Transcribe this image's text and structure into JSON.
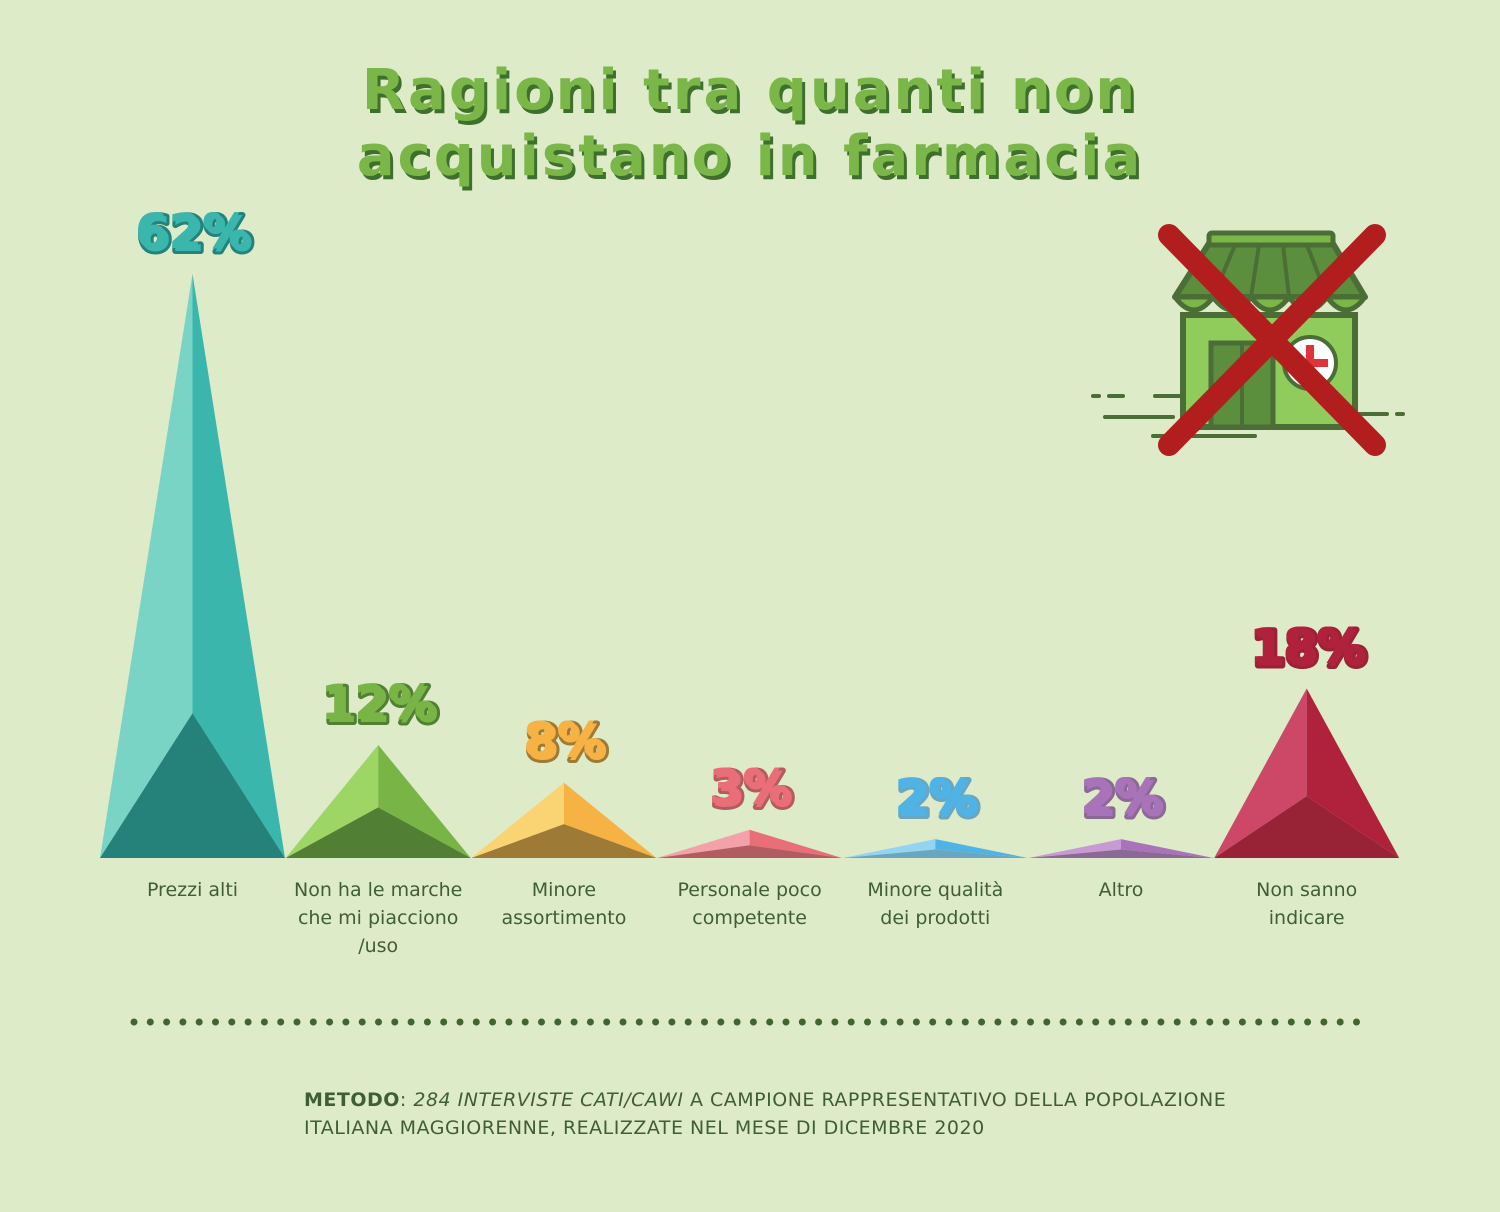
{
  "title": {
    "line1": "Ragioni tra quanti non",
    "line2": "acquistano in farmacia"
  },
  "chart_data": {
    "type": "bar",
    "style": "pyramid",
    "categories": [
      "Prezzi alti",
      "Non ha le marche che mi piacciono /uso",
      "Minore assortimento",
      "Personale poco competente",
      "Minore qualità dei prodotti",
      "Altro",
      "Non sanno indicare"
    ],
    "category_lines": [
      [
        "Prezzi alti"
      ],
      [
        "Non ha le marche",
        "che mi piacciono",
        "/uso"
      ],
      [
        "Minore",
        "assortimento"
      ],
      [
        "Personale poco",
        "competente"
      ],
      [
        "Minore qualità",
        "dei prodotti"
      ],
      [
        "Altro"
      ],
      [
        "Non sanno",
        "indicare"
      ]
    ],
    "values": [
      62,
      12,
      8,
      3,
      2,
      2,
      18
    ],
    "value_labels": [
      "62%",
      "12%",
      "8%",
      "3%",
      "2%",
      "2%",
      "18%"
    ],
    "unit": "%",
    "colors": [
      {
        "light": "#79d4c6",
        "main": "#3bb6ad",
        "dark": "#24827a"
      },
      {
        "light": "#9dd665",
        "main": "#79b447",
        "dark": "#517f34"
      },
      {
        "light": "#fad373",
        "main": "#f7b244",
        "dark": "#9d7a35"
      },
      {
        "light": "#f4a1a9",
        "main": "#e96e78",
        "dark": "#b05c61"
      },
      {
        "light": "#94d4f1",
        "main": "#4fb3e6",
        "dark": "#6aa6c0"
      },
      {
        "light": "#c89ad3",
        "main": "#a873b8",
        "dark": "#8a6a94"
      },
      {
        "light": "#cc4866",
        "main": "#b0223c",
        "dark": "#982236"
      }
    ],
    "ylim": [
      0,
      62
    ],
    "grid": false,
    "legend": "none"
  },
  "footer": {
    "method_label": "Metodo",
    "method_sep": ": ",
    "method_italic": "284 interviste CATI/CAWI",
    "method_rest": " a campione rappresentativo della popolazione italiana maggiorenne, realizzate nel mese di dicembre 2020"
  },
  "icon": {
    "name": "pharmacy-store-crossed-icon",
    "store_color": "#7ab648",
    "cross_color": "#b21e1e"
  }
}
